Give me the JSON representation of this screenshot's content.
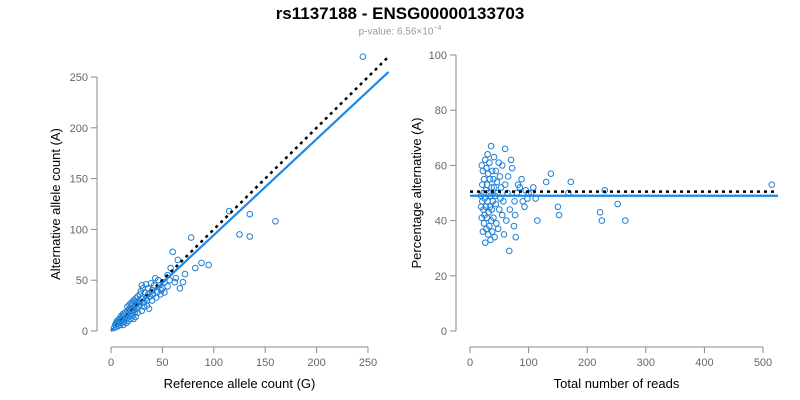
{
  "title": "rs1137188 - ENSG00000133703",
  "subtitle": {
    "prefix": "p-value: 6.56×10",
    "exponent": "−4"
  },
  "colors": {
    "points": "#1f7fd6",
    "fit": "#1e88e5",
    "expected": "#000000"
  },
  "chart_data": [
    {
      "type": "scatter",
      "xlabel": "Reference allele count (G)",
      "ylabel": "Alternative allele count (A)",
      "xlim": [
        0,
        250
      ],
      "ylim": [
        0,
        250
      ],
      "xticks": [
        0,
        50,
        100,
        150,
        200,
        250
      ],
      "yticks": [
        0,
        50,
        100,
        150,
        200,
        250
      ],
      "grid": false,
      "fit_line": {
        "from": [
          0,
          0
        ],
        "to": [
          270,
          255
        ]
      },
      "expected_line": {
        "from": [
          0,
          0
        ],
        "to": [
          270,
          270
        ]
      },
      "points": [
        [
          245,
          270
        ],
        [
          160,
          108
        ],
        [
          115,
          118
        ],
        [
          135,
          115
        ],
        [
          125,
          95
        ],
        [
          135,
          93
        ],
        [
          78,
          92
        ],
        [
          95,
          65
        ],
        [
          88,
          67
        ],
        [
          60,
          78
        ],
        [
          65,
          70
        ],
        [
          70,
          48
        ],
        [
          58,
          62
        ],
        [
          55,
          55
        ],
        [
          52,
          48
        ],
        [
          50,
          42
        ],
        [
          46,
          50
        ],
        [
          45,
          38
        ],
        [
          42,
          45
        ],
        [
          40,
          40
        ],
        [
          38,
          34
        ],
        [
          36,
          42
        ],
        [
          35,
          30
        ],
        [
          33,
          38
        ],
        [
          32,
          28
        ],
        [
          30,
          32
        ],
        [
          30,
          45
        ],
        [
          28,
          26
        ],
        [
          28,
          36
        ],
        [
          27,
          30
        ],
        [
          25,
          22
        ],
        [
          25,
          28
        ],
        [
          24,
          32
        ],
        [
          23,
          18
        ],
        [
          23,
          25
        ],
        [
          22,
          20
        ],
        [
          22,
          30
        ],
        [
          21,
          15
        ],
        [
          21,
          22
        ],
        [
          20,
          17
        ],
        [
          20,
          25
        ],
        [
          19,
          12
        ],
        [
          19,
          20
        ],
        [
          18,
          15
        ],
        [
          18,
          22
        ],
        [
          17,
          10
        ],
        [
          17,
          18
        ],
        [
          16,
          13
        ],
        [
          16,
          20
        ],
        [
          15,
          8
        ],
        [
          15,
          16
        ],
        [
          14,
          12
        ],
        [
          14,
          18
        ],
        [
          13,
          9
        ],
        [
          13,
          15
        ],
        [
          12,
          6
        ],
        [
          12,
          12
        ],
        [
          12,
          17
        ],
        [
          11,
          10
        ],
        [
          11,
          14
        ],
        [
          10,
          8
        ],
        [
          10,
          12
        ],
        [
          10,
          15
        ],
        [
          9,
          6
        ],
        [
          9,
          10
        ],
        [
          8,
          8
        ],
        [
          8,
          12
        ],
        [
          7,
          5
        ],
        [
          7,
          9
        ],
        [
          6,
          7
        ],
        [
          6,
          10
        ],
        [
          5,
          4
        ],
        [
          5,
          8
        ],
        [
          4,
          6
        ],
        [
          3,
          3
        ],
        [
          40,
          30
        ],
        [
          44,
          33
        ],
        [
          48,
          36
        ],
        [
          55,
          44
        ],
        [
          62,
          48
        ],
        [
          67,
          42
        ],
        [
          72,
          56
        ],
        [
          82,
          62
        ],
        [
          35,
          25
        ],
        [
          26,
          18
        ],
        [
          24,
          14
        ],
        [
          22,
          12
        ],
        [
          30,
          20
        ],
        [
          32,
          24
        ],
        [
          37,
          22
        ],
        [
          26,
          34
        ],
        [
          29,
          39
        ],
        [
          31,
          42
        ],
        [
          34,
          46
        ],
        [
          20,
          28
        ],
        [
          18,
          26
        ],
        [
          16,
          24
        ],
        [
          21,
          26
        ],
        [
          23,
          29
        ],
        [
          27,
          24
        ],
        [
          52,
          38
        ],
        [
          57,
          50
        ],
        [
          63,
          52
        ],
        [
          43,
          52
        ],
        [
          47,
          45
        ],
        [
          49,
          40
        ],
        [
          39,
          47
        ],
        [
          41,
          36
        ],
        [
          36,
          36
        ],
        [
          34,
          32
        ]
      ]
    },
    {
      "type": "scatter",
      "xlabel": "Total number of reads",
      "ylabel": "Percentage alternative (A)",
      "xlim": [
        0,
        500
      ],
      "ylim": [
        0,
        100
      ],
      "xticks": [
        0,
        100,
        200,
        300,
        400,
        500
      ],
      "yticks": [
        0,
        20,
        40,
        60,
        80,
        100
      ],
      "grid": false,
      "fit_line": {
        "y": 49
      },
      "expected_line": {
        "y": 50.5
      },
      "points": [
        [
          515,
          53
        ],
        [
          265,
          40
        ],
        [
          252,
          46
        ],
        [
          230,
          51
        ],
        [
          225,
          40
        ],
        [
          222,
          43
        ],
        [
          172,
          54
        ],
        [
          168,
          50
        ],
        [
          152,
          42
        ],
        [
          150,
          45
        ],
        [
          138,
          57
        ],
        [
          130,
          54
        ],
        [
          115,
          40
        ],
        [
          112,
          48
        ],
        [
          108,
          52
        ],
        [
          105,
          50
        ],
        [
          100,
          50
        ],
        [
          98,
          48
        ],
        [
          95,
          51
        ],
        [
          93,
          45
        ],
        [
          90,
          47
        ],
        [
          88,
          55
        ],
        [
          85,
          52
        ],
        [
          82,
          53
        ],
        [
          80,
          50
        ],
        [
          78,
          34
        ],
        [
          77,
          42
        ],
        [
          76,
          47
        ],
        [
          75,
          38
        ],
        [
          72,
          59
        ],
        [
          70,
          62
        ],
        [
          68,
          44
        ],
        [
          67,
          29
        ],
        [
          65,
          56
        ],
        [
          64,
          50
        ],
        [
          62,
          40
        ],
        [
          60,
          53
        ],
        [
          60,
          66
        ],
        [
          58,
          35
        ],
        [
          57,
          47
        ],
        [
          55,
          42
        ],
        [
          55,
          60
        ],
        [
          53,
          52
        ],
        [
          52,
          48
        ],
        [
          51,
          56
        ],
        [
          50,
          44
        ],
        [
          49,
          61
        ],
        [
          48,
          37
        ],
        [
          47,
          50
        ],
        [
          46,
          54
        ],
        [
          45,
          39
        ],
        [
          44,
          46
        ],
        [
          44,
          58
        ],
        [
          43,
          49
        ],
        [
          42,
          34
        ],
        [
          41,
          63
        ],
        [
          41,
          52
        ],
        [
          40,
          41
        ],
        [
          40,
          55
        ],
        [
          39,
          47
        ],
        [
          38,
          36
        ],
        [
          38,
          58
        ],
        [
          37,
          44
        ],
        [
          37,
          52
        ],
        [
          36,
          67
        ],
        [
          36,
          40
        ],
        [
          35,
          49
        ],
        [
          35,
          33
        ],
        [
          34,
          55
        ],
        [
          34,
          45
        ],
        [
          33,
          61
        ],
        [
          33,
          38
        ],
        [
          32,
          50
        ],
        [
          32,
          43
        ],
        [
          31,
          57
        ],
        [
          31,
          35
        ],
        [
          30,
          47
        ],
        [
          30,
          64
        ],
        [
          29,
          41
        ],
        [
          29,
          53
        ],
        [
          28,
          37
        ],
        [
          28,
          59
        ],
        [
          27,
          45
        ],
        [
          27,
          51
        ],
        [
          26,
          32
        ],
        [
          26,
          62
        ],
        [
          25,
          48
        ],
        [
          25,
          42
        ],
        [
          24,
          55
        ],
        [
          24,
          39
        ],
        [
          23,
          50
        ],
        [
          23,
          44
        ],
        [
          22,
          58
        ],
        [
          22,
          36
        ],
        [
          21,
          47
        ],
        [
          21,
          53
        ],
        [
          20,
          41
        ],
        [
          20,
          60
        ],
        [
          19,
          49
        ],
        [
          19,
          45
        ]
      ]
    }
  ]
}
